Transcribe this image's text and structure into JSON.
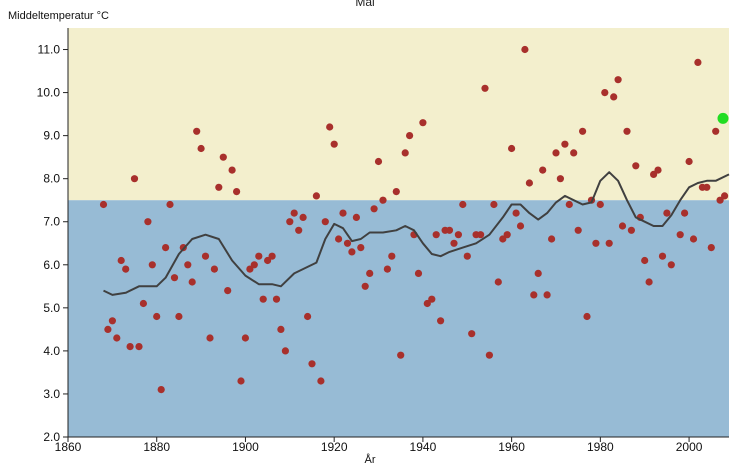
{
  "chart_data": {
    "type": "scatter",
    "title": "Mai",
    "ylabel": "Middeltemperatur °C",
    "xlabel": "År",
    "xlim": [
      1860,
      2009
    ],
    "ylim": [
      2.0,
      11.5
    ],
    "xticks": [
      1860,
      1880,
      1900,
      1920,
      1940,
      1960,
      1980,
      2000
    ],
    "xtick_labels": [
      "1860",
      "1880",
      "1900",
      "1920",
      "1940",
      "1960",
      "1980",
      "2000"
    ],
    "yticks": [
      2.0,
      3.0,
      4.0,
      5.0,
      6.0,
      7.0,
      8.0,
      9.0,
      10.0,
      11.0
    ],
    "ytick_labels": [
      "2.0",
      "3.0",
      "4.0",
      "5.0",
      "6.0",
      "7.0",
      "8.0",
      "9.0",
      "10.0",
      "11.0"
    ],
    "threshold": 7.5,
    "colors": {
      "above_band": "#f3efcd",
      "below_band": "#97bbd5",
      "points": "#a8302c",
      "smooth_line": "#404040",
      "highlight_point": "#22dd22"
    },
    "series": [
      {
        "type": "scatter",
        "points": [
          [
            1868,
            7.4
          ],
          [
            1869,
            4.5
          ],
          [
            1870,
            4.7
          ],
          [
            1871,
            4.3
          ],
          [
            1872,
            6.1
          ],
          [
            1873,
            5.9
          ],
          [
            1874,
            4.1
          ],
          [
            1875,
            8.0
          ],
          [
            1876,
            4.1
          ],
          [
            1877,
            5.1
          ],
          [
            1878,
            7.0
          ],
          [
            1879,
            6.0
          ],
          [
            1880,
            4.8
          ],
          [
            1881,
            3.1
          ],
          [
            1882,
            6.4
          ],
          [
            1883,
            7.4
          ],
          [
            1884,
            5.7
          ],
          [
            1885,
            4.8
          ],
          [
            1886,
            6.4
          ],
          [
            1887,
            6.0
          ],
          [
            1888,
            5.6
          ],
          [
            1889,
            9.1
          ],
          [
            1890,
            8.7
          ],
          [
            1891,
            6.2
          ],
          [
            1892,
            4.3
          ],
          [
            1893,
            5.9
          ],
          [
            1894,
            7.8
          ],
          [
            1895,
            8.5
          ],
          [
            1896,
            5.4
          ],
          [
            1897,
            8.2
          ],
          [
            1898,
            7.7
          ],
          [
            1899,
            3.3
          ],
          [
            1900,
            4.3
          ],
          [
            1901,
            5.9
          ],
          [
            1902,
            6.0
          ],
          [
            1903,
            6.2
          ],
          [
            1904,
            5.2
          ],
          [
            1905,
            6.1
          ],
          [
            1906,
            6.2
          ],
          [
            1907,
            5.2
          ],
          [
            1908,
            4.5
          ],
          [
            1909,
            4.0
          ],
          [
            1910,
            7.0
          ],
          [
            1911,
            7.2
          ],
          [
            1912,
            6.8
          ],
          [
            1913,
            7.1
          ],
          [
            1914,
            4.8
          ],
          [
            1915,
            3.7
          ],
          [
            1916,
            7.6
          ],
          [
            1917,
            3.3
          ],
          [
            1918,
            7.0
          ],
          [
            1919,
            9.2
          ],
          [
            1920,
            8.8
          ],
          [
            1921,
            6.6
          ],
          [
            1922,
            7.2
          ],
          [
            1923,
            6.5
          ],
          [
            1924,
            6.3
          ],
          [
            1925,
            7.1
          ],
          [
            1926,
            6.4
          ],
          [
            1927,
            5.5
          ],
          [
            1928,
            5.8
          ],
          [
            1929,
            7.3
          ],
          [
            1930,
            8.4
          ],
          [
            1931,
            7.5
          ],
          [
            1932,
            5.9
          ],
          [
            1933,
            6.2
          ],
          [
            1934,
            7.7
          ],
          [
            1935,
            3.9
          ],
          [
            1936,
            8.6
          ],
          [
            1937,
            9.0
          ],
          [
            1938,
            6.7
          ],
          [
            1939,
            5.8
          ],
          [
            1940,
            9.3
          ],
          [
            1941,
            5.1
          ],
          [
            1942,
            5.2
          ],
          [
            1943,
            6.7
          ],
          [
            1944,
            4.7
          ],
          [
            1945,
            6.8
          ],
          [
            1946,
            6.8
          ],
          [
            1947,
            6.5
          ],
          [
            1948,
            6.7
          ],
          [
            1949,
            7.4
          ],
          [
            1950,
            6.2
          ],
          [
            1951,
            4.4
          ],
          [
            1952,
            6.7
          ],
          [
            1953,
            6.7
          ],
          [
            1954,
            10.1
          ],
          [
            1955,
            3.9
          ],
          [
            1956,
            7.4
          ],
          [
            1957,
            5.6
          ],
          [
            1958,
            6.6
          ],
          [
            1959,
            6.7
          ],
          [
            1960,
            8.7
          ],
          [
            1961,
            7.2
          ],
          [
            1962,
            6.9
          ],
          [
            1963,
            11.0
          ],
          [
            1964,
            7.9
          ],
          [
            1965,
            5.3
          ],
          [
            1966,
            5.8
          ],
          [
            1967,
            8.2
          ],
          [
            1968,
            5.3
          ],
          [
            1969,
            6.6
          ],
          [
            1970,
            8.6
          ],
          [
            1971,
            8.0
          ],
          [
            1972,
            8.8
          ],
          [
            1973,
            7.4
          ],
          [
            1974,
            8.6
          ],
          [
            1975,
            6.8
          ],
          [
            1976,
            9.1
          ],
          [
            1977,
            4.8
          ],
          [
            1978,
            7.5
          ],
          [
            1979,
            6.5
          ],
          [
            1980,
            7.4
          ],
          [
            1981,
            10.0
          ],
          [
            1982,
            6.5
          ],
          [
            1983,
            9.9
          ],
          [
            1984,
            10.3
          ],
          [
            1985,
            6.9
          ],
          [
            1986,
            9.1
          ],
          [
            1987,
            6.8
          ],
          [
            1988,
            8.3
          ],
          [
            1989,
            7.1
          ],
          [
            1990,
            6.1
          ],
          [
            1991,
            5.6
          ],
          [
            1992,
            8.1
          ],
          [
            1993,
            8.2
          ],
          [
            1994,
            6.2
          ],
          [
            1995,
            7.2
          ],
          [
            1996,
            6.0
          ],
          [
            1998,
            6.7
          ],
          [
            1999,
            7.2
          ],
          [
            2000,
            8.4
          ],
          [
            2001,
            6.6
          ],
          [
            2002,
            10.7
          ],
          [
            2003,
            7.8
          ],
          [
            2004,
            7.8
          ],
          [
            2005,
            6.4
          ],
          [
            2006,
            9.1
          ],
          [
            2007,
            7.5
          ],
          [
            2008,
            7.6
          ]
        ]
      },
      {
        "type": "line",
        "points": [
          [
            1868,
            5.4
          ],
          [
            1870,
            5.3
          ],
          [
            1873,
            5.35
          ],
          [
            1876,
            5.5
          ],
          [
            1878,
            5.5
          ],
          [
            1880,
            5.5
          ],
          [
            1882,
            5.7
          ],
          [
            1885,
            6.25
          ],
          [
            1888,
            6.6
          ],
          [
            1891,
            6.7
          ],
          [
            1894,
            6.6
          ],
          [
            1897,
            6.1
          ],
          [
            1900,
            5.75
          ],
          [
            1903,
            5.55
          ],
          [
            1906,
            5.55
          ],
          [
            1908,
            5.5
          ],
          [
            1911,
            5.8
          ],
          [
            1914,
            5.95
          ],
          [
            1916,
            6.05
          ],
          [
            1918,
            6.6
          ],
          [
            1920,
            6.95
          ],
          [
            1922,
            6.85
          ],
          [
            1924,
            6.55
          ],
          [
            1926,
            6.6
          ],
          [
            1928,
            6.75
          ],
          [
            1931,
            6.75
          ],
          [
            1934,
            6.8
          ],
          [
            1936,
            6.9
          ],
          [
            1938,
            6.8
          ],
          [
            1940,
            6.5
          ],
          [
            1942,
            6.25
          ],
          [
            1944,
            6.2
          ],
          [
            1946,
            6.3
          ],
          [
            1949,
            6.4
          ],
          [
            1952,
            6.5
          ],
          [
            1955,
            6.7
          ],
          [
            1958,
            7.1
          ],
          [
            1960,
            7.4
          ],
          [
            1962,
            7.4
          ],
          [
            1964,
            7.2
          ],
          [
            1966,
            7.05
          ],
          [
            1968,
            7.2
          ],
          [
            1970,
            7.45
          ],
          [
            1972,
            7.6
          ],
          [
            1974,
            7.5
          ],
          [
            1976,
            7.4
          ],
          [
            1978,
            7.45
          ],
          [
            1980,
            7.95
          ],
          [
            1982,
            8.15
          ],
          [
            1984,
            7.95
          ],
          [
            1986,
            7.5
          ],
          [
            1988,
            7.1
          ],
          [
            1990,
            7.0
          ],
          [
            1992,
            6.9
          ],
          [
            1994,
            6.9
          ],
          [
            1996,
            7.15
          ],
          [
            1998,
            7.5
          ],
          [
            2000,
            7.8
          ],
          [
            2002,
            7.9
          ],
          [
            2004,
            7.95
          ],
          [
            2006,
            7.95
          ],
          [
            2009,
            8.1
          ]
        ]
      },
      {
        "type": "highlight",
        "points": [
          [
            2009,
            9.4
          ]
        ]
      }
    ]
  }
}
